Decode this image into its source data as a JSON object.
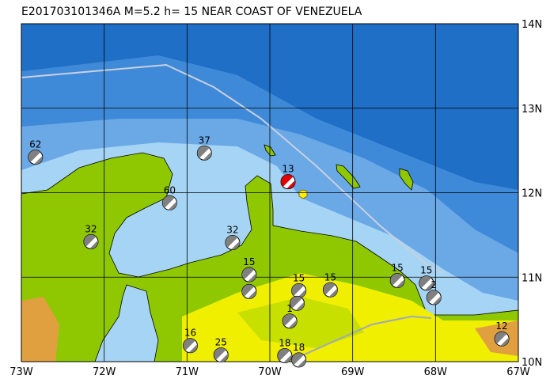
{
  "map": {
    "title": "E201703101346A M=5.2 h= 15 NEAR COAST OF VENEZUELA",
    "lonlim": [
      -73,
      -67
    ],
    "latlim": [
      10,
      14
    ],
    "lonticks": [
      {
        "value": -73,
        "label": "73W"
      },
      {
        "value": -72,
        "label": "72W"
      },
      {
        "value": -71,
        "label": "71W"
      },
      {
        "value": -70,
        "label": "70W"
      },
      {
        "value": -69,
        "label": "69W"
      },
      {
        "value": -68,
        "label": "68W"
      },
      {
        "value": -67,
        "label": "67W"
      }
    ],
    "latticks": [
      {
        "value": 10,
        "label": "10N"
      },
      {
        "value": 11,
        "label": "11N"
      },
      {
        "value": 12,
        "label": "12N"
      },
      {
        "value": 13,
        "label": "13N"
      },
      {
        "value": 14,
        "label": "14N"
      }
    ],
    "grid": true,
    "main_color": "#e00000",
    "ball_color": "#808080",
    "events": [
      {
        "lon": -72.83,
        "lat": 12.42,
        "depth": 62
      },
      {
        "lon": -70.79,
        "lat": 12.47,
        "depth": 37
      },
      {
        "lon": -71.21,
        "lat": 11.88,
        "depth": 60
      },
      {
        "lon": -72.16,
        "lat": 11.42,
        "depth": 32
      },
      {
        "lon": -70.45,
        "lat": 11.41,
        "depth": 32
      },
      {
        "lon": -69.78,
        "lat": 12.13,
        "depth": 13,
        "main": true
      },
      {
        "lon": -70.25,
        "lat": 11.03,
        "depth": 15
      },
      {
        "lon": -70.25,
        "lat": 10.83,
        "depth": null
      },
      {
        "lon": -69.65,
        "lat": 10.84,
        "depth": 15
      },
      {
        "lon": -69.67,
        "lat": 10.69,
        "depth": null
      },
      {
        "lon": -69.27,
        "lat": 10.85,
        "depth": 15
      },
      {
        "lon": -69.76,
        "lat": 10.48,
        "depth": 1
      },
      {
        "lon": -68.46,
        "lat": 10.96,
        "depth": 15
      },
      {
        "lon": -68.11,
        "lat": 10.93,
        "depth": 15
      },
      {
        "lon": -68.02,
        "lat": 10.76,
        "depth": 2
      },
      {
        "lon": -70.96,
        "lat": 10.19,
        "depth": 16
      },
      {
        "lon": -70.59,
        "lat": 10.08,
        "depth": 25
      },
      {
        "lon": -69.82,
        "lat": 10.07,
        "depth": 18
      },
      {
        "lon": -69.65,
        "lat": 10.02,
        "depth": 18
      },
      {
        "lon": -67.2,
        "lat": 10.27,
        "depth": 12
      }
    ]
  }
}
